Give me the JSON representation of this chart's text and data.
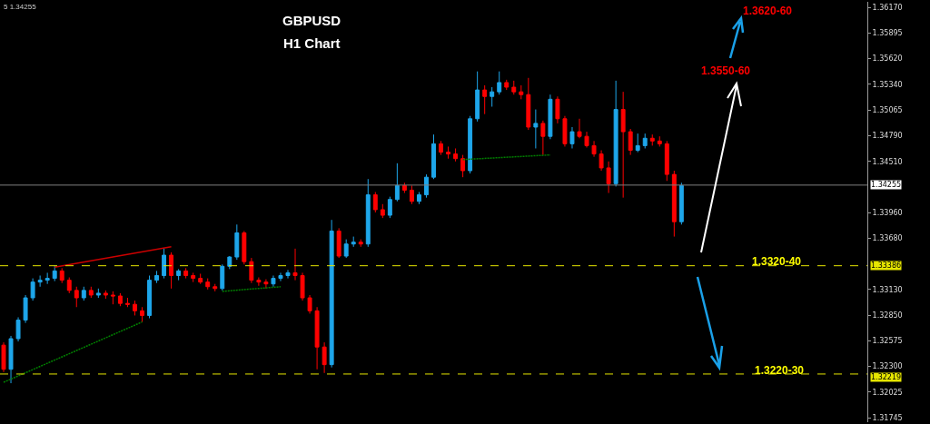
{
  "chart_data": {
    "type": "candlestick",
    "title": "GBPUSD",
    "subtitle": "H1 Chart",
    "categories": [
      null,
      null,
      null,
      null,
      null,
      null,
      null,
      null,
      null,
      null,
      null,
      null,
      null,
      null,
      null,
      null,
      null,
      null,
      null,
      null,
      null,
      null,
      null,
      null,
      null,
      null,
      null,
      null,
      null,
      null,
      null,
      null,
      null,
      null,
      null,
      null,
      null,
      null,
      null,
      null,
      null,
      null,
      null,
      null,
      null,
      null,
      null,
      null,
      null,
      null,
      null,
      null,
      null,
      null,
      null,
      null,
      null,
      null,
      null,
      null,
      null,
      null,
      null,
      null,
      null,
      null,
      null,
      null,
      null,
      null,
      null,
      null,
      null,
      null,
      null,
      null,
      null,
      null,
      null,
      null,
      null,
      null,
      null,
      null,
      null,
      null,
      null,
      null,
      null,
      null,
      null,
      null,
      null,
      null,
      null,
      null,
      null,
      null,
      null,
      null,
      null,
      null,
      null,
      null,
      null,
      null,
      null,
      null,
      null,
      null,
      null,
      null,
      null,
      null,
      null,
      null,
      null,
      null,
      null
    ],
    "colors": [
      "#ff0000",
      "#1ea6ea",
      "#1ea6ea",
      "#1ea6ea",
      "#1ea6ea",
      "#1ea6ea",
      "#1ea6ea",
      "#1ea6ea",
      "#ff0000",
      "#ff0000",
      "#ff0000",
      "#1ea6ea",
      "#ff0000",
      "#1ea6ea",
      "#ff0000",
      "#ff0000",
      "#ff0000",
      "#ff0000",
      "#ff0000",
      "#ff0000",
      "#1ea6ea",
      "#1ea6ea",
      "#1ea6ea",
      "#ff0000",
      "#1ea6ea",
      "#ff0000",
      "#ff0000",
      "#ff0000",
      "#ff0000",
      "#ff0000",
      "#1ea6ea",
      "#1ea6ea",
      "#1ea6ea",
      "#ff0000",
      "#ff0000",
      "#ff0000",
      "#ff0000",
      "#1ea6ea",
      "#1ea6ea",
      "#1ea6ea",
      "#ff0000",
      "#ff0000",
      "#ff0000",
      "#ff0000",
      "#ff0000",
      "#1ea6ea",
      "#ff0000",
      "#1ea6ea",
      "#1ea6ea",
      "#ff0000",
      "#1ea6ea",
      "#ff0000",
      "#ff0000",
      "#1ea6ea",
      "#1ea6ea",
      "#ff0000",
      "#ff0000",
      "#1ea6ea",
      "#1ea6ea",
      "#1ea6ea",
      "#ff0000",
      "#ff0000",
      "#ff0000",
      "#ff0000",
      "#1ea6ea",
      "#1ea6ea",
      "#ff0000",
      "#1ea6ea",
      "#1ea6ea",
      "#ff0000",
      "#ff0000",
      "#ff0000",
      "#ff0000",
      "#1ea6ea",
      "#ff0000",
      "#1ea6ea",
      "#ff0000",
      "#ff0000",
      "#1ea6ea",
      "#ff0000",
      "#ff0000",
      "#ff0000",
      "#ff0000",
      "#ff0000",
      "#1ea6ea",
      "#ff0000",
      "#ff0000",
      "#1ea6ea",
      "#1ea6ea",
      "#ff0000",
      "#ff0000",
      "#ff0000",
      "#ff0000",
      "#1ea6ea",
      null,
      null,
      null,
      null,
      null,
      null,
      null,
      null,
      null,
      null,
      null,
      null,
      null,
      null,
      null,
      null,
      null,
      null,
      null,
      null,
      null,
      null,
      null,
      null,
      null
    ],
    "ohlc": [
      [
        1.3253,
        1.3256,
        1.3224,
        1.3227
      ],
      [
        1.3227,
        1.3263,
        1.3212,
        1.326
      ],
      [
        1.326,
        1.3283,
        1.3257,
        1.328
      ],
      [
        1.328,
        1.3307,
        1.3277,
        1.3304
      ],
      [
        1.3304,
        1.3325,
        1.3301,
        1.3321
      ],
      [
        1.3321,
        1.3328,
        1.3316,
        1.3323
      ],
      [
        1.3323,
        1.3331,
        1.3319,
        1.3325
      ],
      [
        1.3325,
        1.3339,
        1.3322,
        1.3333
      ],
      [
        1.3333,
        1.3336,
        1.332,
        1.3323
      ],
      [
        1.3323,
        1.3326,
        1.3309,
        1.3312
      ],
      [
        1.3312,
        1.3316,
        1.3294,
        1.3304
      ],
      [
        1.3304,
        1.3316,
        1.3301,
        1.3312
      ],
      [
        1.3312,
        1.3316,
        1.3304,
        1.3307
      ],
      [
        1.3307,
        1.3314,
        1.3304,
        1.3309
      ],
      [
        1.3309,
        1.3312,
        1.3303,
        1.3307
      ],
      [
        1.3307,
        1.3311,
        1.3297,
        1.3306
      ],
      [
        1.3306,
        1.3309,
        1.3295,
        1.3298
      ],
      [
        1.3298,
        1.3304,
        1.3294,
        1.3297
      ],
      [
        1.3297,
        1.3301,
        1.3285,
        1.329
      ],
      [
        1.329,
        1.3294,
        1.3278,
        1.3285
      ],
      [
        1.3285,
        1.3328,
        1.3282,
        1.3323
      ],
      [
        1.3323,
        1.3333,
        1.332,
        1.3328
      ],
      [
        1.3328,
        1.3357,
        1.3325,
        1.335
      ],
      [
        1.335,
        1.3353,
        1.3314,
        1.3328
      ],
      [
        1.3328,
        1.3335,
        1.3323,
        1.3333
      ],
      [
        1.3333,
        1.3336,
        1.3325,
        1.3328
      ],
      [
        1.3328,
        1.3331,
        1.3321,
        1.3325
      ],
      [
        1.3325,
        1.333,
        1.3319,
        1.3321
      ],
      [
        1.3321,
        1.3325,
        1.3313,
        1.3316
      ],
      [
        1.3316,
        1.3319,
        1.3311,
        1.3314
      ],
      [
        1.3314,
        1.334,
        1.3312,
        1.3338
      ],
      [
        1.3338,
        1.3349,
        1.3335,
        1.3348
      ],
      [
        1.3348,
        1.3383,
        1.3345,
        1.3374
      ],
      [
        1.3374,
        1.3376,
        1.334,
        1.3343
      ],
      [
        1.3343,
        1.3347,
        1.332,
        1.3323
      ],
      [
        1.3323,
        1.3326,
        1.3317,
        1.3321
      ],
      [
        1.3321,
        1.3324,
        1.3314,
        1.3319
      ],
      [
        1.3319,
        1.3328,
        1.3316,
        1.3325
      ],
      [
        1.3325,
        1.3331,
        1.3322,
        1.3328
      ],
      [
        1.3328,
        1.3334,
        1.3325,
        1.3331
      ],
      [
        1.3331,
        1.3357,
        1.3323,
        1.3328
      ],
      [
        1.3328,
        1.3331,
        1.3301,
        1.3304
      ],
      [
        1.3304,
        1.3307,
        1.3287,
        1.329
      ],
      [
        1.329,
        1.3294,
        1.3227,
        1.3251
      ],
      [
        1.3251,
        1.3256,
        1.3223,
        1.3232
      ],
      [
        1.3232,
        1.3388,
        1.3229,
        1.3376
      ],
      [
        1.3376,
        1.3379,
        1.3347,
        1.3349
      ],
      [
        1.3349,
        1.3367,
        1.3347,
        1.3362
      ],
      [
        1.3362,
        1.337,
        1.3359,
        1.3364
      ],
      [
        1.3364,
        1.3367,
        1.3359,
        1.3362
      ],
      [
        1.3362,
        1.3432,
        1.3359,
        1.3415
      ],
      [
        1.3415,
        1.3418,
        1.3396,
        1.3399
      ],
      [
        1.3399,
        1.3405,
        1.339,
        1.3393
      ],
      [
        1.3393,
        1.3413,
        1.339,
        1.341
      ],
      [
        1.341,
        1.3449,
        1.3408,
        1.3425
      ],
      [
        1.3425,
        1.3428,
        1.3417,
        1.342
      ],
      [
        1.342,
        1.3425,
        1.3405,
        1.3408
      ],
      [
        1.3408,
        1.3418,
        1.3405,
        1.3415
      ],
      [
        1.3415,
        1.3437,
        1.3412,
        1.3434
      ],
      [
        1.3434,
        1.348,
        1.3432,
        1.347
      ],
      [
        1.347,
        1.3473,
        1.3458,
        1.3461
      ],
      [
        1.3461,
        1.3467,
        1.3454,
        1.3459
      ],
      [
        1.3459,
        1.3465,
        1.3451,
        1.3454
      ],
      [
        1.3454,
        1.3458,
        1.3434,
        1.3441
      ],
      [
        1.3441,
        1.35,
        1.3438,
        1.3497
      ],
      [
        1.3497,
        1.3548,
        1.3494,
        1.3528
      ],
      [
        1.3528,
        1.3533,
        1.3502,
        1.3521
      ],
      [
        1.3521,
        1.3531,
        1.351,
        1.3526
      ],
      [
        1.3526,
        1.3548,
        1.3523,
        1.3536
      ],
      [
        1.3536,
        1.3539,
        1.3528,
        1.3531
      ],
      [
        1.3531,
        1.3538,
        1.3523,
        1.3526
      ],
      [
        1.3526,
        1.3533,
        1.3518,
        1.3523
      ],
      [
        1.3523,
        1.3541,
        1.3485,
        1.3488
      ],
      [
        1.3488,
        1.3507,
        1.3465,
        1.3492
      ],
      [
        1.3492,
        1.3495,
        1.3458,
        1.3478
      ],
      [
        1.3478,
        1.3523,
        1.3475,
        1.3518
      ],
      [
        1.3518,
        1.3521,
        1.3492,
        1.3497
      ],
      [
        1.3497,
        1.35,
        1.3467,
        1.347
      ],
      [
        1.347,
        1.3488,
        1.3465,
        1.3483
      ],
      [
        1.3483,
        1.3497,
        1.3476,
        1.3478
      ],
      [
        1.3478,
        1.3483,
        1.3466,
        1.3468
      ],
      [
        1.3468,
        1.3473,
        1.3456,
        1.3459
      ],
      [
        1.3459,
        1.3463,
        1.3441,
        1.3444
      ],
      [
        1.3444,
        1.3451,
        1.3417,
        1.3427
      ],
      [
        1.3427,
        1.3538,
        1.3424,
        1.3507
      ],
      [
        1.3507,
        1.3526,
        1.3412,
        1.3483
      ],
      [
        1.3483,
        1.3486,
        1.3458,
        1.3463
      ],
      [
        1.3463,
        1.3481,
        1.3461,
        1.3468
      ],
      [
        1.3468,
        1.3481,
        1.3465,
        1.3476
      ],
      [
        1.3476,
        1.348,
        1.3468,
        1.3473
      ],
      [
        1.3473,
        1.3478,
        1.3467,
        1.347
      ],
      [
        1.347,
        1.3473,
        1.343,
        1.3437
      ],
      [
        1.3437,
        1.3441,
        1.337,
        1.3386
      ],
      [
        1.3386,
        1.3428,
        1.3383,
        1.3425
      ],
      null,
      null,
      null,
      null,
      null,
      null,
      null,
      null,
      null,
      null,
      null,
      null,
      null,
      null,
      null,
      null,
      null,
      null,
      null,
      null,
      null,
      null,
      null,
      null,
      null
    ],
    "series": [
      {
        "type": "line",
        "color": "#cc0000",
        "line_style": "solid",
        "values": [
          null,
          null,
          null,
          null,
          null,
          null,
          null,
          1.3337,
          null,
          null,
          null,
          null,
          null,
          null,
          null,
          null,
          null,
          null,
          null,
          null,
          null,
          null,
          null,
          1.3359,
          null,
          null,
          null,
          null,
          null,
          null,
          null,
          null,
          null,
          null,
          null,
          null,
          null,
          null,
          null,
          null,
          null,
          null,
          null,
          null,
          null,
          null,
          null,
          null,
          null,
          null,
          null,
          null,
          null,
          null,
          null,
          null,
          null,
          null,
          null,
          null,
          null,
          null,
          null,
          null,
          null,
          null,
          null,
          null,
          null,
          null,
          null,
          null,
          null,
          null,
          null,
          null,
          null,
          null,
          null,
          null,
          null,
          null,
          null,
          null,
          null,
          null,
          null,
          null,
          null,
          null,
          null,
          null,
          null,
          null,
          null,
          null,
          null,
          null,
          null,
          null,
          null,
          null,
          null,
          null,
          null,
          null,
          null,
          null,
          null,
          null,
          null,
          null,
          null,
          null,
          null,
          null,
          null,
          null,
          null
        ]
      },
      {
        "type": "line",
        "color": "#008000",
        "line_style": "dotted",
        "values": [
          1.3213,
          null,
          null,
          null,
          null,
          null,
          null,
          null,
          null,
          null,
          null,
          null,
          null,
          null,
          null,
          null,
          null,
          null,
          null,
          1.3278,
          null,
          null,
          null,
          null,
          null,
          null,
          null,
          null,
          null,
          null,
          null,
          null,
          null,
          null,
          null,
          null,
          null,
          null,
          null,
          null,
          null,
          null,
          null,
          null,
          null,
          null,
          null,
          null,
          null,
          null,
          null,
          null,
          null,
          null,
          null,
          null,
          null,
          null,
          null,
          null,
          null,
          null,
          null,
          null,
          null,
          null,
          null,
          null,
          null,
          null,
          null,
          null,
          null,
          null,
          null,
          null,
          null,
          null,
          null,
          null,
          null,
          null,
          null,
          null,
          null,
          null,
          null,
          null,
          null,
          null,
          null,
          null,
          null,
          null,
          null,
          null,
          null,
          null,
          null,
          null,
          null,
          null,
          null,
          null,
          null,
          null,
          null,
          null,
          null,
          null,
          null,
          null,
          null,
          null,
          null,
          null,
          null,
          null,
          null
        ]
      },
      {
        "type": "line",
        "color": "#008000",
        "line_style": "dotted",
        "values": [
          null,
          null,
          null,
          null,
          null,
          null,
          null,
          null,
          null,
          null,
          null,
          null,
          null,
          null,
          null,
          null,
          null,
          null,
          null,
          null,
          null,
          null,
          null,
          null,
          null,
          null,
          null,
          null,
          null,
          null,
          1.3311,
          null,
          null,
          null,
          null,
          null,
          null,
          null,
          1.3316,
          null,
          null,
          null,
          null,
          null,
          null,
          null,
          null,
          null,
          null,
          null,
          null,
          null,
          null,
          null,
          null,
          null,
          null,
          null,
          null,
          null,
          null,
          null,
          null,
          null,
          null,
          null,
          null,
          null,
          null,
          null,
          null,
          null,
          null,
          null,
          null,
          null,
          null,
          null,
          null,
          null,
          null,
          null,
          null,
          null,
          null,
          null,
          null,
          null,
          null,
          null,
          null,
          null,
          null,
          null,
          null,
          null,
          null,
          null,
          null,
          null,
          null,
          null,
          null,
          null,
          null,
          null,
          null,
          null,
          null,
          null,
          null,
          null,
          null,
          null,
          null,
          null,
          null,
          null,
          null
        ]
      },
      {
        "type": "line",
        "color": "#008000",
        "line_style": "dotted",
        "values": [
          null,
          null,
          null,
          null,
          null,
          null,
          null,
          null,
          null,
          null,
          null,
          null,
          null,
          null,
          null,
          null,
          null,
          null,
          null,
          null,
          null,
          null,
          null,
          null,
          null,
          null,
          null,
          null,
          null,
          null,
          null,
          null,
          null,
          null,
          null,
          null,
          null,
          null,
          null,
          null,
          null,
          null,
          null,
          null,
          null,
          null,
          null,
          null,
          null,
          null,
          null,
          null,
          null,
          null,
          null,
          null,
          null,
          null,
          null,
          null,
          null,
          null,
          null,
          1.3453,
          null,
          null,
          null,
          null,
          null,
          null,
          null,
          null,
          null,
          null,
          null,
          1.3458,
          null,
          null,
          null,
          null,
          null,
          null,
          null,
          null,
          null,
          null,
          null,
          null,
          null,
          null,
          null,
          null,
          null,
          null,
          null,
          null,
          null,
          null,
          null,
          null,
          null,
          null,
          null,
          null,
          null,
          null,
          null,
          null,
          null,
          null,
          null,
          null,
          null,
          null,
          null,
          null,
          null,
          null,
          null
        ]
      }
    ],
    "ylim": [
      1.317,
      1.3623
    ],
    "yticks": [
      {
        "value": 1.3617,
        "label": "1.36170"
      },
      1.35895,
      {
        "value": 1.3562,
        "label": "1.35620"
      },
      {
        "value": 1.3534,
        "label": "1.35340"
      },
      1.35065,
      {
        "value": 1.3479,
        "label": "1.34790"
      },
      {
        "value": 1.3451,
        "label": "1.34510"
      },
      {
        "value": 1.3396,
        "label": "1.33960"
      },
      {
        "value": 1.3368,
        "label": "1.33680"
      },
      {
        "value": 1.3313,
        "label": "1.33130"
      },
      {
        "value": 1.3285,
        "label": "1.32850"
      },
      1.32575,
      {
        "value": 1.323,
        "label": "1.32300"
      },
      1.32025,
      1.31745
    ],
    "ref_lines": [
      {
        "axis": "y",
        "value": 1.34255,
        "label": "1.34255",
        "color": "#808080",
        "line_style": "solid"
      },
      {
        "axis": "y",
        "value": 1.33386,
        "label": "1.33386",
        "color": "#e6e600",
        "line_style": "dashed"
      },
      {
        "axis": "y",
        "value": 1.32219,
        "label": "1.32219",
        "color": "#e6e600",
        "line_style": "dashed"
      }
    ],
    "annotations": [
      "5 1.34255",
      "1.3620-60",
      "1.3550-60",
      "1.3320-40",
      "1.3220-30"
    ],
    "grid": false,
    "legend": false,
    "tick_labels": "y",
    "marker": "none"
  }
}
